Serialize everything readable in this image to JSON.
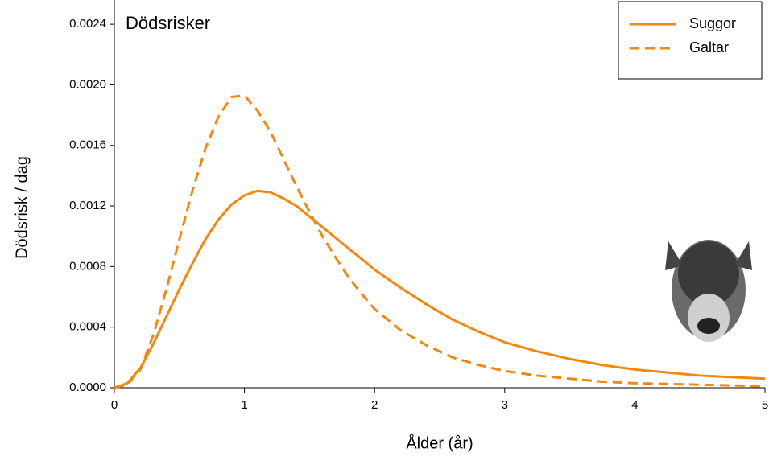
{
  "chart_data": {
    "type": "line",
    "title": "Dödsrisker",
    "xlabel": "Ålder (år)",
    "ylabel": "Dödsrisk / dag",
    "x": [
      0,
      0.1,
      0.2,
      0.3,
      0.4,
      0.5,
      0.6,
      0.7,
      0.8,
      0.9,
      1.0,
      1.1,
      1.2,
      1.3,
      1.4,
      1.5,
      1.6,
      1.7,
      1.8,
      1.9,
      2.0,
      2.2,
      2.4,
      2.6,
      2.8,
      3.0,
      3.25,
      3.5,
      3.75,
      4.0,
      4.25,
      4.5,
      4.75,
      5.0
    ],
    "series": [
      {
        "name": "Suggor",
        "color": "#f5870f",
        "dash": "solid",
        "values": [
          0,
          3e-05,
          0.00013,
          0.00029,
          0.00047,
          0.00065,
          0.00082,
          0.00098,
          0.00111,
          0.00121,
          0.00127,
          0.0013,
          0.00129,
          0.00125,
          0.0012,
          0.00113,
          0.00106,
          0.00099,
          0.00092,
          0.00085,
          0.00078,
          0.00066,
          0.00055,
          0.00045,
          0.00037,
          0.0003,
          0.00024,
          0.00019,
          0.00015,
          0.00012,
          0.0001,
          8e-05,
          7e-05,
          6e-05
        ]
      },
      {
        "name": "Galtar",
        "color": "#f5870f",
        "dash": "dashed",
        "values": [
          0,
          2e-05,
          0.00012,
          0.00035,
          0.00065,
          0.00098,
          0.0013,
          0.00158,
          0.00179,
          0.00192,
          0.00193,
          0.00183,
          0.00169,
          0.00151,
          0.00133,
          0.00116,
          0.001,
          0.00086,
          0.00073,
          0.00062,
          0.00052,
          0.00038,
          0.00028,
          0.0002,
          0.00015,
          0.00011,
          8e-05,
          6e-05,
          4e-05,
          3e-05,
          2.5e-05,
          2e-05,
          1.5e-05,
          1e-05
        ]
      }
    ],
    "xlim": [
      0,
      5
    ],
    "xticks": [
      0,
      1,
      2,
      3,
      4,
      5
    ],
    "ylim": [
      0,
      0.00256
    ],
    "yticks": [
      {
        "value": 0,
        "label": "0.0000"
      },
      0.0004,
      0.0008,
      0.0012,
      0.0016,
      {
        "value": 0.002,
        "label": "0.0020"
      },
      0.0024
    ],
    "legend": "top-right"
  }
}
